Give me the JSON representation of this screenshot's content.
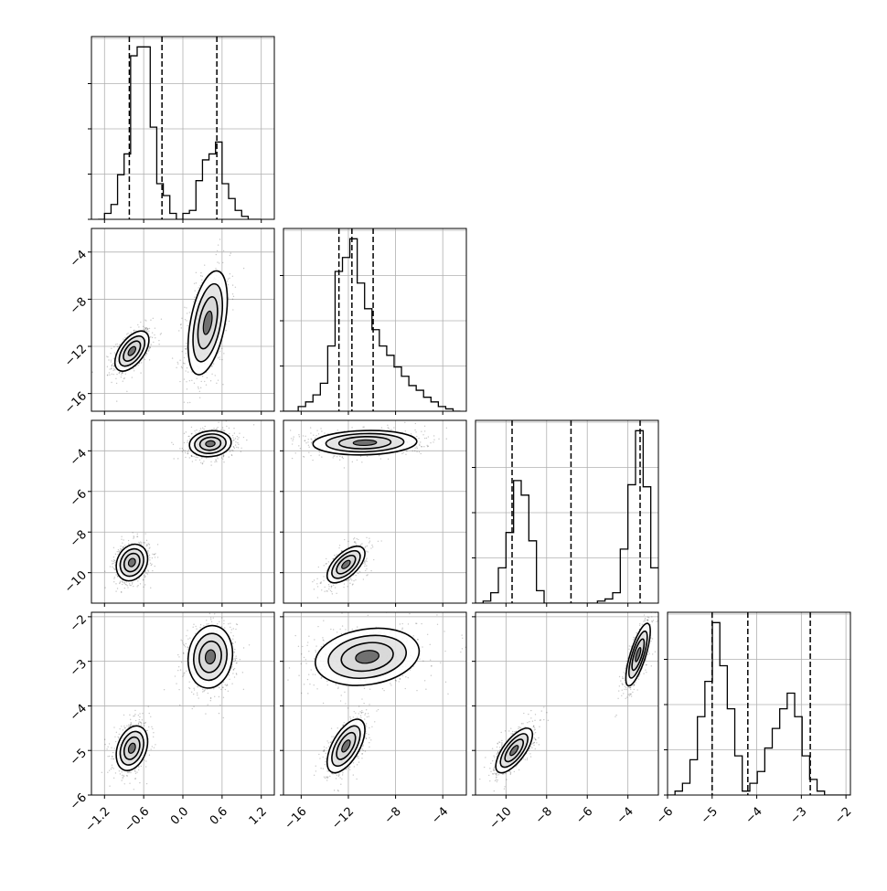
{
  "figure": {
    "background": "#ffffff",
    "grid_color": "#b0b0b0",
    "ink_color": "#000000",
    "scatter_color": "#000000",
    "density_fill": "#cfcfcf"
  },
  "parameters": [
    {
      "range": [
        -1.4,
        1.4
      ],
      "ticks": [
        -1.2,
        -0.6,
        0.0,
        0.6,
        1.2
      ],
      "tick_labels": [
        "−1.2",
        "−0.6",
        "0.0",
        "0.6",
        "1.2"
      ],
      "quantiles": [
        -0.82,
        -0.32,
        0.52
      ]
    },
    {
      "range": [
        -17.5,
        -2.0
      ],
      "ticks": [
        -16,
        -12,
        -8,
        -4
      ],
      "tick_labels": [
        "−16",
        "−12",
        "−8",
        "−4"
      ],
      "quantiles": [
        -12.8,
        -11.7,
        -9.9
      ]
    },
    {
      "range": [
        -11.5,
        -2.5
      ],
      "ticks": [
        -10,
        -8,
        -6,
        -4
      ],
      "tick_labels": [
        "−10",
        "−8",
        "−6",
        "−4"
      ],
      "quantiles": [
        -9.7,
        -6.8,
        -3.4
      ]
    },
    {
      "range": [
        -6.0,
        -1.9
      ],
      "ticks": [
        -6,
        -5,
        -4,
        -3,
        -2
      ],
      "tick_labels": [
        "−6",
        "−5",
        "−4",
        "−3",
        "−2"
      ],
      "quantiles": [
        -5.0,
        -4.2,
        -2.8
      ]
    }
  ],
  "chart_data": {
    "type": "scatter",
    "subtype": "corner plot (pairwise posterior samples with 1D marginal histograms)",
    "title": "",
    "grid": true,
    "histograms": [
      {
        "param": 0,
        "bins": [
          -1.3,
          -1.2,
          -1.1,
          -1.0,
          -0.9,
          -0.8,
          -0.7,
          -0.6,
          -0.5,
          -0.4,
          -0.3,
          -0.2,
          -0.1,
          0.0,
          0.1,
          0.2,
          0.3,
          0.4,
          0.5,
          0.6,
          0.7,
          0.8,
          0.9,
          1.0,
          1.1
        ],
        "counts": [
          0,
          2,
          5,
          15,
          22,
          55,
          58,
          58,
          31,
          12,
          8,
          2,
          0,
          2,
          3,
          13,
          20,
          22,
          26,
          12,
          7,
          3,
          1,
          0,
          0
        ]
      },
      {
        "param": 1,
        "bins": [
          -17.5,
          -16.875,
          -16.25,
          -15.625,
          -15.0,
          -14.375,
          -13.75,
          -13.125,
          -12.5,
          -11.875,
          -11.25,
          -10.625,
          -10.0,
          -9.375,
          -8.75,
          -8.125,
          -7.5,
          -6.875,
          -6.25,
          -5.625,
          -5.0,
          -4.375,
          -3.75,
          -3.125,
          -2.5
        ],
        "counts": [
          0,
          0,
          2,
          4,
          7,
          12,
          28,
          60,
          66,
          74,
          55,
          44,
          35,
          28,
          24,
          19,
          15,
          11,
          9,
          6,
          4,
          2,
          1,
          0
        ]
      },
      {
        "param": 2,
        "bins": [
          -11.5,
          -11.125,
          -10.75,
          -10.375,
          -10.0,
          -9.625,
          -9.25,
          -8.875,
          -8.5,
          -8.125,
          -7.75,
          -7.375,
          -7.0,
          -6.625,
          -6.25,
          -5.875,
          -5.5,
          -5.125,
          -4.75,
          -4.375,
          -4.0,
          -3.625,
          -3.25,
          -2.875,
          -2.5
        ],
        "counts": [
          0,
          1,
          5,
          17,
          34,
          59,
          52,
          30,
          6,
          0,
          0,
          0,
          0,
          0,
          0,
          0,
          1,
          2,
          5,
          26,
          57,
          83,
          56,
          17
        ]
      },
      {
        "param": 3,
        "bins": [
          -6.0,
          -5.8325,
          -5.665,
          -5.4975,
          -5.33,
          -5.1625,
          -4.995,
          -4.8275,
          -4.66,
          -4.4925,
          -4.325,
          -4.155,
          -3.9875,
          -3.82,
          -3.6525,
          -3.485,
          -3.3175,
          -3.15,
          -2.9825,
          -2.815,
          -2.6475,
          -2.48,
          -2.3125,
          -2.145,
          -1.9
        ],
        "counts": [
          0,
          1,
          3,
          9,
          20,
          29,
          44,
          33,
          22,
          10,
          1,
          3,
          6,
          12,
          17,
          22,
          26,
          20,
          10,
          4,
          1,
          0,
          0,
          0
        ]
      }
    ],
    "pairs": [
      {
        "x_param": 0,
        "y_param": 1,
        "modes": [
          {
            "x": -0.78,
            "y": -12.4,
            "sx": 0.13,
            "sy": 0.85,
            "rho": 0.55,
            "weight": 0.5
          },
          {
            "x": 0.38,
            "y": -10.0,
            "sx": 0.15,
            "sy": 2.2,
            "rho": 0.45,
            "weight": 0.5
          }
        ]
      },
      {
        "x_param": 0,
        "y_param": 2,
        "modes": [
          {
            "x": -0.78,
            "y": -9.5,
            "sx": 0.12,
            "sy": 0.45,
            "rho": 0.2,
            "weight": 0.5
          },
          {
            "x": 0.42,
            "y": -3.65,
            "sx": 0.16,
            "sy": 0.32,
            "rho": 0.1,
            "weight": 0.5
          }
        ]
      },
      {
        "x_param": 0,
        "y_param": 3,
        "modes": [
          {
            "x": -0.78,
            "y": -4.95,
            "sx": 0.12,
            "sy": 0.25,
            "rho": 0.3,
            "weight": 0.5
          },
          {
            "x": 0.42,
            "y": -2.9,
            "sx": 0.17,
            "sy": 0.35,
            "rho": 0.1,
            "weight": 0.5
          }
        ]
      },
      {
        "x_param": 1,
        "y_param": 2,
        "modes": [
          {
            "x": -12.2,
            "y": -9.6,
            "sx": 0.8,
            "sy": 0.45,
            "rho": 0.6,
            "weight": 0.5
          },
          {
            "x": -10.6,
            "y": -3.6,
            "sx": 2.2,
            "sy": 0.3,
            "rho": 0.1,
            "weight": 0.5
          }
        ]
      },
      {
        "x_param": 1,
        "y_param": 3,
        "modes": [
          {
            "x": -12.2,
            "y": -4.9,
            "sx": 0.8,
            "sy": 0.3,
            "rho": 0.6,
            "weight": 0.5
          },
          {
            "x": -10.4,
            "y": -2.9,
            "sx": 2.2,
            "sy": 0.32,
            "rho": 0.2,
            "weight": 0.5
          }
        ]
      },
      {
        "x_param": 2,
        "y_param": 3,
        "modes": [
          {
            "x": -9.6,
            "y": -5.0,
            "sx": 0.45,
            "sy": 0.25,
            "rho": 0.7,
            "weight": 0.5
          },
          {
            "x": -3.5,
            "y": -2.85,
            "sx": 0.3,
            "sy": 0.35,
            "rho": 0.75,
            "weight": 0.5
          }
        ]
      }
    ]
  }
}
